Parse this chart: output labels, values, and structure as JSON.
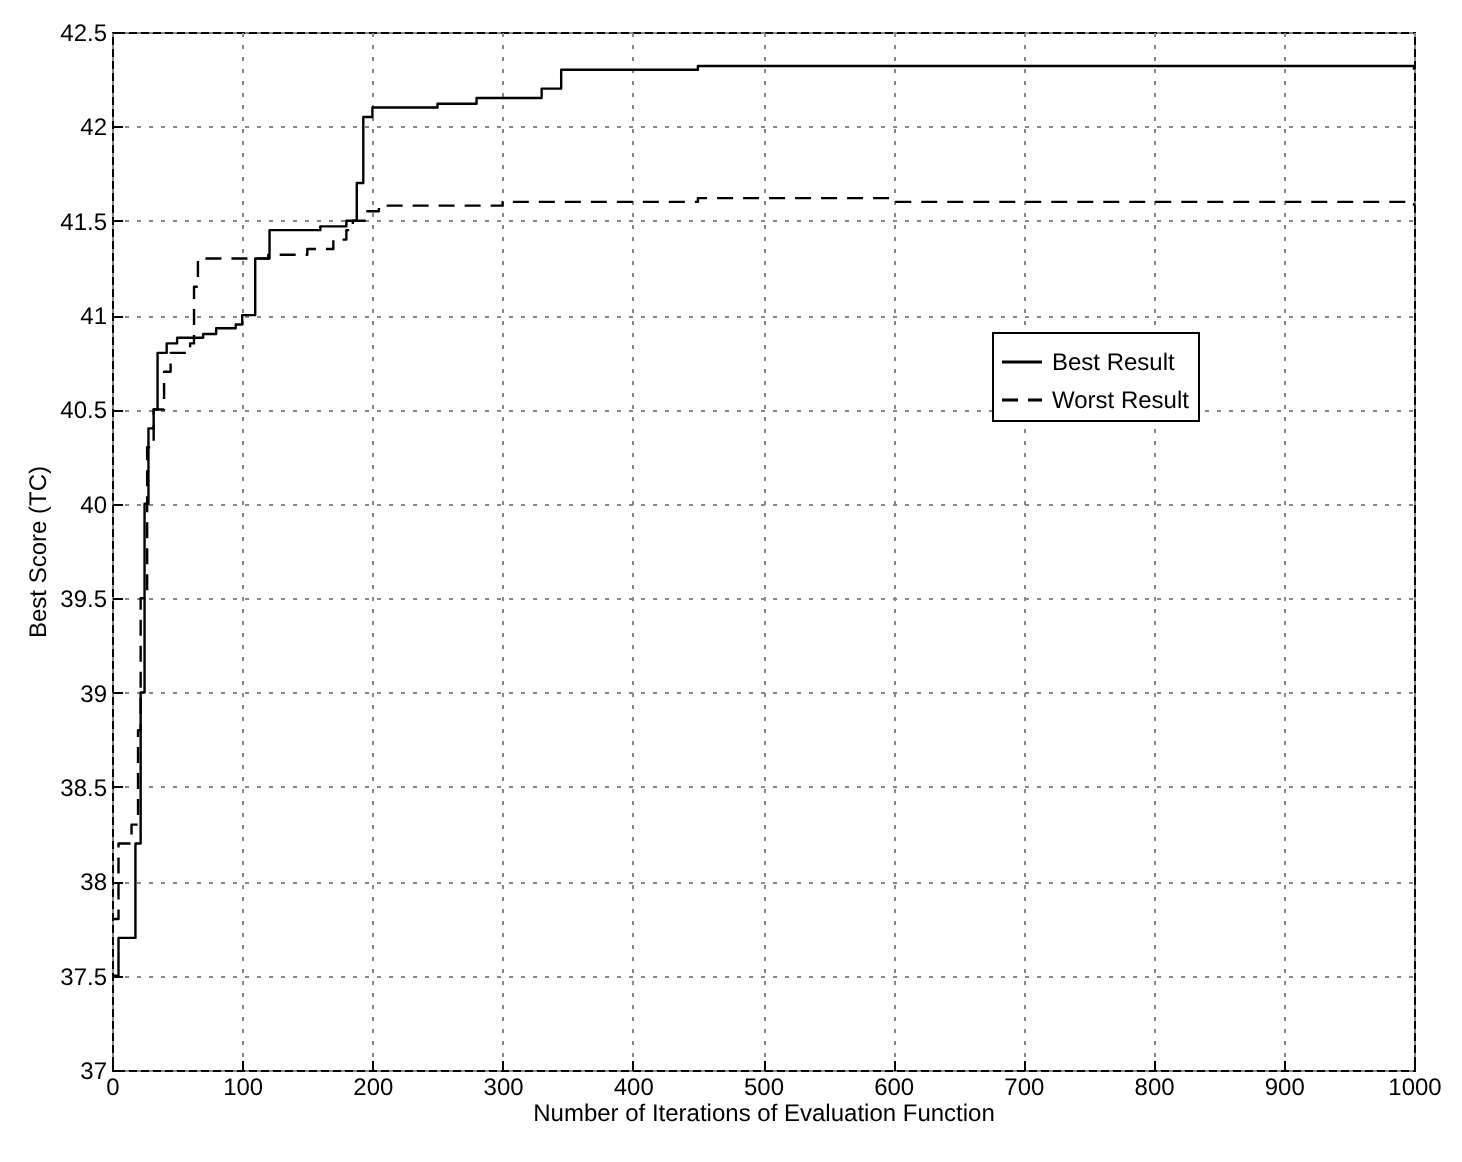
{
  "chart_data": {
    "type": "step",
    "xlabel": "Number of Iterations of Evaluation Function",
    "ylabel": "Best Score (TC)",
    "xlim": [
      0,
      1000
    ],
    "ylim": [
      37,
      42.5
    ],
    "xticks": [
      0,
      100,
      200,
      300,
      400,
      500,
      600,
      700,
      800,
      900,
      1000
    ],
    "yticks": [
      37,
      37.5,
      38,
      38.5,
      39,
      39.5,
      40,
      40.5,
      41,
      41.5,
      42,
      42.5
    ],
    "grid": true,
    "legend": "right",
    "series": [
      {
        "name": "Best Result",
        "color": "#000000",
        "line_style": "solid",
        "x": [
          0,
          5,
          15,
          18,
          22,
          25,
          28,
          32,
          35,
          42,
          50,
          70,
          80,
          95,
          100,
          110,
          121,
          160,
          180,
          188,
          193,
          200,
          250,
          280,
          330,
          345,
          450,
          1000
        ],
        "values": [
          37.5,
          37.7,
          37.7,
          38.2,
          39.0,
          40.0,
          40.4,
          40.5,
          40.8,
          40.85,
          40.88,
          40.9,
          40.93,
          40.95,
          41.0,
          41.3,
          41.45,
          41.47,
          41.5,
          41.7,
          42.05,
          42.1,
          42.12,
          42.15,
          42.2,
          42.3,
          42.32,
          42.3
        ]
      },
      {
        "name": "Worst Result",
        "color": "#000000",
        "line_style": "dashed",
        "x": [
          0,
          5,
          15,
          20,
          22,
          27,
          32,
          40,
          45,
          60,
          63,
          66,
          100,
          120,
          150,
          170,
          180,
          185,
          195,
          205,
          300,
          450,
          600,
          1000
        ],
        "values": [
          37.8,
          38.2,
          38.3,
          38.8,
          39.5,
          40.3,
          40.5,
          40.7,
          40.8,
          40.85,
          41.15,
          41.3,
          41.3,
          41.32,
          41.35,
          41.4,
          41.45,
          41.5,
          41.55,
          41.58,
          41.6,
          41.62,
          41.6,
          41.58
        ]
      }
    ]
  }
}
